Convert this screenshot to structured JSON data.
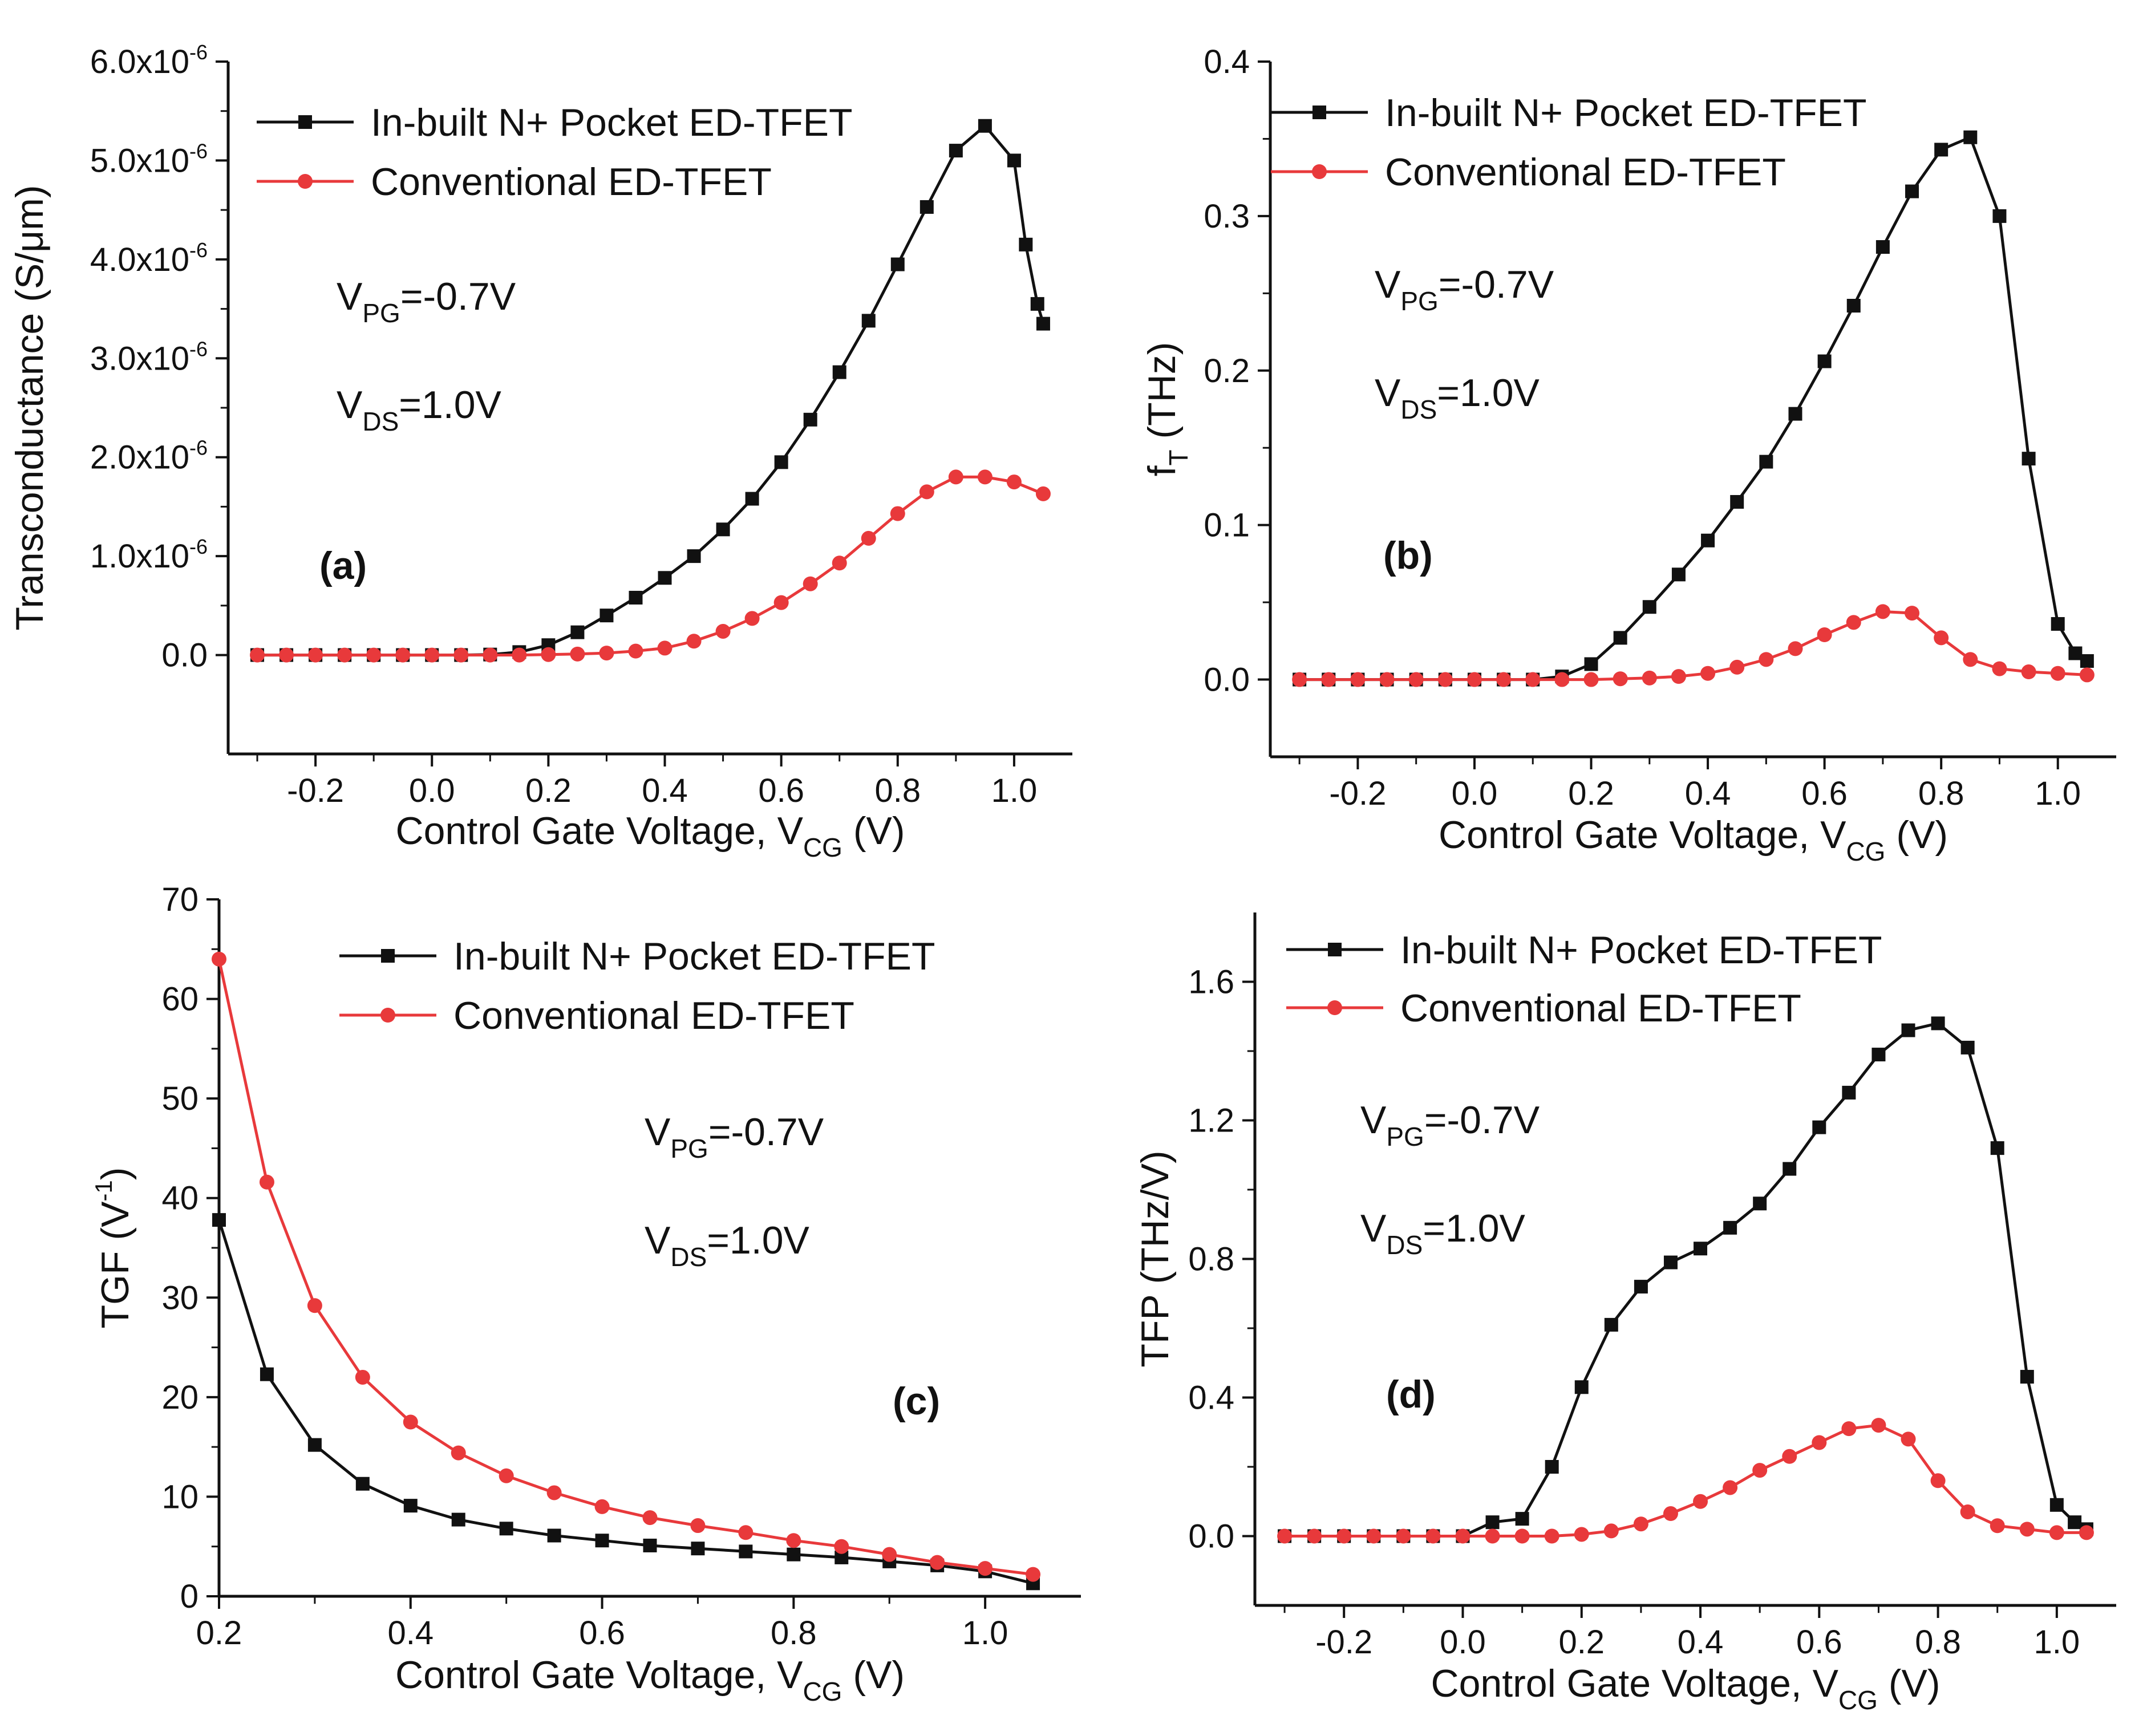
{
  "figure": {
    "colors": {
      "black_series": "#111111",
      "red_series": "#e8393b",
      "axis": "#111111"
    }
  },
  "chart_data": [
    {
      "panel": "a",
      "type": "line",
      "panel_label": "(a)",
      "xlabel_main": "Control Gate Voltage, V",
      "xlabel_sub": "CG",
      "xlabel_tail": " (V)",
      "ylabel": "Transconductance (S/μm)",
      "xlim": [
        -0.35,
        1.1
      ],
      "ylim": [
        -1e-06,
        6e-06
      ],
      "x_ticks": [
        -0.2,
        0.0,
        0.2,
        0.4,
        0.6,
        0.8,
        1.0
      ],
      "x_tick_labels": [
        "-0.2",
        "0.0",
        "0.2",
        "0.4",
        "0.6",
        "0.8",
        "1.0"
      ],
      "y_ticks": [
        0,
        1e-06,
        2e-06,
        3e-06,
        4e-06,
        5e-06,
        6e-06
      ],
      "y_tick_labels": [
        {
          "mant": "0.0",
          "exp": ""
        },
        {
          "mant": "1.0x10",
          "exp": "-6"
        },
        {
          "mant": "2.0x10",
          "exp": "-6"
        },
        {
          "mant": "3.0x10",
          "exp": "-6"
        },
        {
          "mant": "4.0x10",
          "exp": "-6"
        },
        {
          "mant": "5.0x10",
          "exp": "-6"
        },
        {
          "mant": "6.0x10",
          "exp": "-6"
        }
      ],
      "legend": {
        "position": "top-left"
      },
      "annotations": [
        {
          "main": "V",
          "sub": "PG",
          "tail": "=-0.7V"
        },
        {
          "main": "V",
          "sub": "DS",
          "tail": "=1.0V"
        }
      ],
      "series": [
        {
          "name": "In-built N+ Pocket ED-TFET",
          "marker": "square",
          "color": "#111111",
          "x": [
            -0.3,
            -0.25,
            -0.2,
            -0.15,
            -0.1,
            -0.05,
            0.0,
            0.05,
            0.1,
            0.15,
            0.2,
            0.25,
            0.3,
            0.35,
            0.4,
            0.45,
            0.5,
            0.55,
            0.6,
            0.65,
            0.7,
            0.75,
            0.8,
            0.85,
            0.9,
            0.95,
            1.0,
            1.02,
            1.04,
            1.05
          ],
          "y": [
            0,
            0,
            0,
            0,
            0,
            0,
            0,
            0,
            5e-09,
            3e-08,
            1e-07,
            2.3e-07,
            4e-07,
            5.8e-07,
            7.8e-07,
            1e-06,
            1.27e-06,
            1.58e-06,
            1.95e-06,
            2.38e-06,
            2.86e-06,
            3.38e-06,
            3.95e-06,
            4.53e-06,
            5.1e-06,
            5.35e-06,
            5e-06,
            4.15e-06,
            3.55e-06,
            3.35e-06
          ]
        },
        {
          "name": "Conventional ED-TFET",
          "marker": "circle",
          "color": "#e8393b",
          "x": [
            -0.3,
            -0.25,
            -0.2,
            -0.15,
            -0.1,
            -0.05,
            0.0,
            0.05,
            0.1,
            0.15,
            0.2,
            0.25,
            0.3,
            0.35,
            0.4,
            0.45,
            0.5,
            0.55,
            0.6,
            0.65,
            0.7,
            0.75,
            0.8,
            0.85,
            0.9,
            0.95,
            1.0,
            1.05
          ],
          "y": [
            0,
            0,
            0,
            0,
            0,
            0,
            0,
            0,
            0,
            0,
            5e-09,
            1e-08,
            2e-08,
            4e-08,
            7e-08,
            1.4e-07,
            2.4e-07,
            3.7e-07,
            5.3e-07,
            7.2e-07,
            9.3e-07,
            1.18e-06,
            1.43e-06,
            1.65e-06,
            1.8e-06,
            1.8e-06,
            1.75e-06,
            1.63e-06
          ]
        }
      ]
    },
    {
      "panel": "b",
      "type": "line",
      "panel_label": "(b)",
      "xlabel_main": "Control Gate Voltage, V",
      "xlabel_sub": "CG",
      "xlabel_tail": " (V)",
      "ylabel_main": "f",
      "ylabel_sub": "T",
      "ylabel_tail": " (THz)",
      "xlim": [
        -0.35,
        1.1
      ],
      "ylim": [
        -0.05,
        0.4
      ],
      "x_ticks": [
        -0.2,
        0.0,
        0.2,
        0.4,
        0.6,
        0.8,
        1.0
      ],
      "x_tick_labels": [
        "-0.2",
        "0.0",
        "0.2",
        "0.4",
        "0.6",
        "0.8",
        "1.0"
      ],
      "y_ticks": [
        0,
        0.1,
        0.2,
        0.3,
        0.4
      ],
      "y_tick_labels": [
        "0.0",
        "0.1",
        "0.2",
        "0.3",
        "0.4"
      ],
      "legend": {
        "position": "top-left"
      },
      "annotations": [
        {
          "main": "V",
          "sub": "PG",
          "tail": "=-0.7V"
        },
        {
          "main": "V",
          "sub": "DS",
          "tail": "=1.0V"
        }
      ],
      "series": [
        {
          "name": "In-built N+ Pocket ED-TFET",
          "marker": "square",
          "color": "#111111",
          "x": [
            -0.3,
            -0.25,
            -0.2,
            -0.15,
            -0.1,
            -0.05,
            0.0,
            0.05,
            0.1,
            0.15,
            0.2,
            0.25,
            0.3,
            0.35,
            0.4,
            0.45,
            0.5,
            0.55,
            0.6,
            0.65,
            0.7,
            0.75,
            0.8,
            0.85,
            0.9,
            0.95,
            1.0,
            1.03,
            1.05
          ],
          "y": [
            0,
            0,
            0,
            0,
            0,
            0,
            0,
            0,
            0,
            0.002,
            0.01,
            0.027,
            0.047,
            0.068,
            0.09,
            0.115,
            0.141,
            0.172,
            0.206,
            0.242,
            0.28,
            0.316,
            0.343,
            0.351,
            0.3,
            0.143,
            0.036,
            0.017,
            0.012
          ]
        },
        {
          "name": "Conventional ED-TFET",
          "marker": "circle",
          "color": "#e8393b",
          "x": [
            -0.3,
            -0.25,
            -0.2,
            -0.15,
            -0.1,
            -0.05,
            0.0,
            0.05,
            0.1,
            0.15,
            0.2,
            0.25,
            0.3,
            0.35,
            0.4,
            0.45,
            0.5,
            0.55,
            0.6,
            0.65,
            0.7,
            0.75,
            0.8,
            0.85,
            0.9,
            0.95,
            1.0,
            1.05
          ],
          "y": [
            0,
            0,
            0,
            0,
            0,
            0,
            0,
            0,
            0,
            0,
            0,
            0.0005,
            0.001,
            0.002,
            0.004,
            0.008,
            0.013,
            0.02,
            0.029,
            0.037,
            0.044,
            0.043,
            0.027,
            0.013,
            0.007,
            0.005,
            0.004,
            0.003
          ]
        }
      ]
    },
    {
      "panel": "c",
      "type": "line",
      "panel_label": "(c)",
      "xlabel_main": "Control Gate Voltage, V",
      "xlabel_sub": "CG",
      "xlabel_tail": " (V)",
      "ylabel_main": "TGF (V",
      "ylabel_sup": "-1",
      "ylabel_tail": ")",
      "xlim": [
        0.2,
        1.1
      ],
      "ylim": [
        0,
        70
      ],
      "x_ticks": [
        0.2,
        0.4,
        0.6,
        0.8,
        1.0
      ],
      "x_tick_labels": [
        "0.2",
        "0.4",
        "0.6",
        "0.8",
        "1.0"
      ],
      "y_ticks": [
        0,
        10,
        20,
        30,
        40,
        50,
        60,
        70
      ],
      "y_tick_labels": [
        "0",
        "10",
        "20",
        "30",
        "40",
        "50",
        "60",
        "70"
      ],
      "legend": {
        "position": "top-right"
      },
      "annotations": [
        {
          "main": "V",
          "sub": "PG",
          "tail": "=-0.7V"
        },
        {
          "main": "V",
          "sub": "DS",
          "tail": "=1.0V"
        }
      ],
      "series": [
        {
          "name": "In-built N+ Pocket ED-TFET",
          "marker": "square",
          "color": "#111111",
          "x": [
            0.2,
            0.25,
            0.3,
            0.35,
            0.4,
            0.45,
            0.5,
            0.55,
            0.6,
            0.65,
            0.7,
            0.75,
            0.8,
            0.85,
            0.9,
            0.95,
            1.0,
            1.05
          ],
          "y": [
            37.8,
            22.3,
            15.2,
            11.3,
            9.1,
            7.7,
            6.8,
            6.1,
            5.6,
            5.1,
            4.8,
            4.5,
            4.2,
            3.9,
            3.5,
            3.1,
            2.5,
            1.3
          ]
        },
        {
          "name": "Conventional ED-TFET",
          "marker": "circle",
          "color": "#e8393b",
          "x": [
            0.2,
            0.25,
            0.3,
            0.35,
            0.4,
            0.45,
            0.5,
            0.55,
            0.6,
            0.65,
            0.7,
            0.75,
            0.8,
            0.85,
            0.9,
            0.95,
            1.0,
            1.05
          ],
          "y": [
            64.0,
            41.6,
            29.2,
            22.0,
            17.5,
            14.4,
            12.1,
            10.4,
            9.0,
            7.9,
            7.1,
            6.4,
            5.6,
            5.0,
            4.2,
            3.4,
            2.8,
            2.2
          ]
        }
      ]
    },
    {
      "panel": "d",
      "type": "line",
      "panel_label": "(d)",
      "xlabel_main": "Control Gate Voltage, V",
      "xlabel_sub": "CG",
      "xlabel_tail": " (V)",
      "ylabel": "TFP (THz/V)",
      "xlim": [
        -0.35,
        1.1
      ],
      "ylim": [
        -0.2,
        1.8
      ],
      "x_ticks": [
        -0.2,
        0.0,
        0.2,
        0.4,
        0.6,
        0.8,
        1.0
      ],
      "x_tick_labels": [
        "-0.2",
        "0.0",
        "0.2",
        "0.4",
        "0.6",
        "0.8",
        "1.0"
      ],
      "y_ticks": [
        0,
        0.4,
        0.8,
        1.2,
        1.6
      ],
      "y_tick_labels": [
        "0.0",
        "0.4",
        "0.8",
        "1.2",
        "1.6"
      ],
      "legend": {
        "position": "top-left"
      },
      "annotations": [
        {
          "main": "V",
          "sub": "PG",
          "tail": "=-0.7V"
        },
        {
          "main": "V",
          "sub": "DS",
          "tail": "=1.0V"
        }
      ],
      "series": [
        {
          "name": "In-built N+ Pocket ED-TFET",
          "marker": "square",
          "color": "#111111",
          "x": [
            -0.3,
            -0.25,
            -0.2,
            -0.15,
            -0.1,
            -0.05,
            0.0,
            0.05,
            0.1,
            0.15,
            0.2,
            0.25,
            0.3,
            0.35,
            0.4,
            0.45,
            0.5,
            0.55,
            0.6,
            0.65,
            0.7,
            0.75,
            0.8,
            0.85,
            0.9,
            0.95,
            1.0,
            1.03,
            1.05
          ],
          "y": [
            0,
            0,
            0,
            0,
            0,
            0,
            0,
            0.04,
            0.05,
            0.2,
            0.43,
            0.61,
            0.72,
            0.79,
            0.83,
            0.89,
            0.96,
            1.06,
            1.18,
            1.28,
            1.39,
            1.46,
            1.48,
            1.41,
            1.12,
            0.46,
            0.09,
            0.04,
            0.02
          ]
        },
        {
          "name": "Conventional ED-TFET",
          "marker": "circle",
          "color": "#e8393b",
          "x": [
            -0.3,
            -0.25,
            -0.2,
            -0.15,
            -0.1,
            -0.05,
            0.0,
            0.05,
            0.1,
            0.15,
            0.2,
            0.25,
            0.3,
            0.35,
            0.4,
            0.45,
            0.5,
            0.55,
            0.6,
            0.65,
            0.7,
            0.75,
            0.8,
            0.85,
            0.9,
            0.95,
            1.0,
            1.05
          ],
          "y": [
            0,
            0,
            0,
            0,
            0,
            0,
            0,
            0,
            0,
            0,
            0.005,
            0.015,
            0.035,
            0.065,
            0.1,
            0.14,
            0.19,
            0.23,
            0.27,
            0.31,
            0.32,
            0.28,
            0.16,
            0.07,
            0.03,
            0.02,
            0.01,
            0.01
          ]
        }
      ]
    }
  ]
}
